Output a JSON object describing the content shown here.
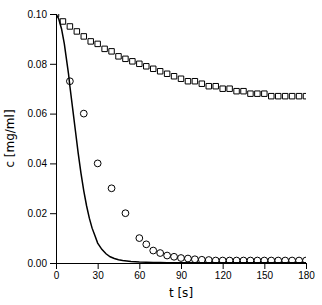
{
  "chart_data": {
    "type": "line",
    "xlabel": "t [s]",
    "ylabel": "c [mg/ml]",
    "xlim": [
      0,
      180
    ],
    "ylim": [
      0,
      0.1
    ],
    "xticks": [
      0,
      30,
      60,
      90,
      120,
      150,
      180
    ],
    "yticks": [
      {
        "value": 0,
        "label": "0.00"
      },
      {
        "value": 0.02,
        "label": "0.02"
      },
      {
        "value": 0.04,
        "label": "0.04"
      },
      {
        "value": 0.06,
        "label": "0.06"
      },
      {
        "value": 0.08,
        "label": "0.08"
      },
      {
        "value": 0.1,
        "label": "0.10"
      }
    ],
    "series": [
      {
        "type": "line",
        "line_style": "solid",
        "color": "#000000",
        "x": [
          0,
          1,
          2,
          3,
          4,
          5,
          6,
          7,
          8,
          9,
          10,
          12,
          14,
          16,
          18,
          20,
          22,
          24,
          26,
          28,
          30,
          33,
          36,
          39,
          42,
          45,
          48,
          51,
          54,
          57,
          60,
          65,
          70,
          75,
          80,
          90,
          100,
          110,
          120,
          130,
          140,
          150,
          160,
          170,
          180
        ],
        "values": [
          0.1,
          0.099,
          0.098,
          0.096,
          0.094,
          0.091,
          0.088,
          0.084,
          0.08,
          0.076,
          0.071,
          0.062,
          0.053,
          0.044,
          0.036,
          0.029,
          0.023,
          0.018,
          0.014,
          0.011,
          0.008,
          0.0055,
          0.0037,
          0.0025,
          0.0018,
          0.0013,
          0.001,
          0.0008,
          0.0006,
          0.0005,
          0.0004,
          0.0003,
          0.0002,
          0.0002,
          0.0001,
          0.0001,
          0.0001,
          0.0001,
          0.0001,
          0.0001,
          0.0001,
          0.0001,
          0.0001,
          0.0001,
          0.0001
        ]
      },
      {
        "type": "scatter",
        "marker": "circle",
        "color": "#000000",
        "x": [
          10,
          20,
          30,
          40,
          50,
          60,
          65,
          70,
          75,
          80,
          85,
          90,
          95,
          100,
          105,
          110,
          115,
          120,
          125,
          130,
          135,
          140,
          145,
          150,
          155,
          160,
          165,
          170,
          175,
          180
        ],
        "values": [
          0.073,
          0.06,
          0.04,
          0.03,
          0.02,
          0.01,
          0.0075,
          0.005,
          0.004,
          0.003,
          0.0025,
          0.002,
          0.0018,
          0.0015,
          0.0013,
          0.0012,
          0.001,
          0.001,
          0.001,
          0.001,
          0.001,
          0.001,
          0.001,
          0.001,
          0.001,
          0.001,
          0.001,
          0.001,
          0.001,
          0.001
        ]
      },
      {
        "type": "scatter",
        "marker": "square",
        "color": "#000000",
        "x": [
          0,
          5,
          10,
          15,
          20,
          25,
          30,
          35,
          40,
          45,
          50,
          55,
          60,
          65,
          70,
          75,
          80,
          85,
          90,
          95,
          100,
          105,
          110,
          115,
          120,
          125,
          130,
          135,
          140,
          145,
          150,
          155,
          160,
          165,
          170,
          175,
          180
        ],
        "values": [
          0.1,
          0.097,
          0.095,
          0.093,
          0.091,
          0.089,
          0.088,
          0.086,
          0.085,
          0.083,
          0.082,
          0.081,
          0.08,
          0.079,
          0.078,
          0.077,
          0.076,
          0.075,
          0.074,
          0.073,
          0.073,
          0.072,
          0.071,
          0.071,
          0.07,
          0.07,
          0.069,
          0.069,
          0.068,
          0.068,
          0.068,
          0.067,
          0.067,
          0.067,
          0.067,
          0.067,
          0.067
        ]
      }
    ]
  }
}
